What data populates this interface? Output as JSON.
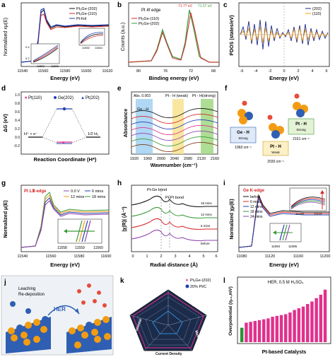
{
  "panels": {
    "a": {
      "letter": "a",
      "ylabel": "Normalised xμ(E)",
      "xlabel": "Energy (eV)",
      "xticks": [
        "11540",
        "11560",
        "11580",
        "11600",
        "11620"
      ],
      "legend": [
        "Pt₃Ge-(202)",
        "Pt₃Ge-(110)",
        "Pt-foil"
      ],
      "inset1_ticks": [
        "11553",
        "11556"
      ],
      "inset1_yticks": [
        "0.4",
        "0.2"
      ],
      "inset2_ticks": [
        "11560",
        "11564"
      ]
    },
    "b": {
      "letter": "b",
      "ylabel": "Counts (a.u.)",
      "xlabel": "Binding energy (eV)",
      "title": "Pt 4f edge",
      "xticks": [
        "80",
        "76",
        "72",
        "68"
      ],
      "legend": [
        "Pt₃Ge-(110)",
        "Pt₃Ge-(202)"
      ],
      "peak_a": "71.77 eV",
      "peak_b": "71.57 eV"
    },
    "c": {
      "letter": "c",
      "ylabel": "PDOS (states/eV)",
      "xlabel": "Energy (eV)",
      "xticks": [
        "-6",
        "-4",
        "-2",
        "0",
        "2",
        "4",
        "6"
      ],
      "legend": [
        "(202)",
        "(110)"
      ]
    },
    "d": {
      "letter": "d",
      "ylabel": "ΔG (eV)",
      "xlabel": "Reaction Coordinate (H*)",
      "yticks": [
        "1.0",
        "0.8",
        "0.6",
        "0.4",
        "0.2",
        "0.0",
        "-0.2"
      ],
      "legend": [
        "Pt(110)",
        "Ge(202)",
        "Pt(202)"
      ],
      "left_label": "H⁺ + e⁻",
      "right_label": "1/2 H₂"
    },
    "e": {
      "letter": "e",
      "ylabel": "Absorbance",
      "xlabel": "Wavenumber (cm⁻¹)",
      "xticks": [
        "1920",
        "1960",
        "2000",
        "2040",
        "2080",
        "2120",
        "2160"
      ],
      "abs_label": "Abs. 0.003",
      "band1": "Pt - H  (weak)",
      "band2": "Pt - H(strong)",
      "band3": "Ge - H"
    },
    "f": {
      "letter": "f",
      "card1": "Ge - H",
      "card1_sub": "Strong",
      "card1_freq": "1960 cm⁻¹",
      "card2": "Pt - H",
      "card2_sub": "Strong",
      "card2_freq": "2151 cm⁻¹",
      "card3": "Pt - H",
      "card3_sub": "Weak",
      "card3_freq": "2030 cm⁻¹"
    },
    "g": {
      "letter": "g",
      "ylabel": "Normalized μ(E)",
      "xlabel": "Energy (eV)",
      "edge": "Pt LⅢ-edge",
      "xticks": [
        "11540",
        "11560",
        "11580",
        "11600"
      ],
      "legend": [
        "0.0 V",
        "6 mins",
        "12 mins",
        "18 mins"
      ],
      "inset_ticks": [
        "11558",
        "11559",
        "11560"
      ]
    },
    "h": {
      "letter": "h",
      "ylabel": "|χ(R)| (Å⁻³)",
      "xlabel": "Radial distance (Å)",
      "xticks": [
        "0",
        "1",
        "2",
        "3",
        "4",
        "5",
        "6"
      ],
      "label1": "Pt-Ge bond",
      "label2": "Pt-Pt bond",
      "curves": [
        "18 mins",
        "12 mins",
        "6 mins",
        "before"
      ]
    },
    "i": {
      "letter": "i",
      "ylabel": "Normalized χμ(E)",
      "xlabel": "Energy (eV)",
      "edge": "Ge K-edge",
      "xticks": [
        "11080",
        "11120",
        "11160",
        "11200"
      ],
      "legend": [
        "before",
        "6 mins",
        "12 mins",
        "18 mins",
        "24 mins"
      ],
      "inset1_ticks": [
        "11105",
        "11110"
      ],
      "inset2_ticks": [
        "11094",
        "11095"
      ]
    },
    "j": {
      "letter": "j",
      "leach": "Leaching",
      "redep": "Re-deposition",
      "arrow": "HER"
    },
    "k": {
      "letter": "k",
      "legend": [
        "Pt₃Ge-(202)",
        "20% Pt/C"
      ],
      "axes": [
        "Stability",
        "Durability",
        "Mass Activity",
        "Current Density",
        "Onset Potential"
      ]
    },
    "l": {
      "letter": "l",
      "title": "HER, 0.5 M H₂SO₄",
      "ylabel": "Overpotential (η₁₀,mV)",
      "xlabel": "Pt-based Catalysts"
    }
  },
  "chart_data": [
    {
      "panel": "l",
      "type": "bar",
      "values": [
        17,
        23,
        24,
        25,
        26,
        27,
        28,
        30,
        31,
        32,
        33,
        35,
        38,
        40,
        42,
        45,
        48,
        52,
        56,
        62
      ],
      "ylabel": "Overpotential (η₁₀,mV)",
      "xlabel": "Pt-based Catalysts"
    }
  ],
  "colors": {
    "blue": "#1f3fb0",
    "red": "#d62728",
    "green": "#3a9a3a",
    "black": "#111111",
    "pink": "#e0318c",
    "orange": "#f39c12"
  }
}
